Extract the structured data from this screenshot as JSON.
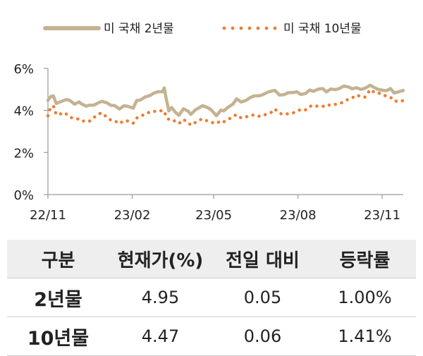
{
  "chart_data": {
    "type": "line",
    "series": [
      {
        "name": "미 국채 2년물",
        "color": "#c4b291",
        "style": "solid",
        "points": [
          [
            "2022-11-01",
            4.48
          ],
          [
            "2022-11-04",
            4.66
          ],
          [
            "2022-11-07",
            4.69
          ],
          [
            "2022-11-10",
            4.33
          ],
          [
            "2022-11-14",
            4.4
          ],
          [
            "2022-11-17",
            4.45
          ],
          [
            "2022-11-21",
            4.52
          ],
          [
            "2022-11-25",
            4.47
          ],
          [
            "2022-11-30",
            4.3
          ],
          [
            "2022-12-05",
            4.4
          ],
          [
            "2022-12-08",
            4.3
          ],
          [
            "2022-12-13",
            4.2
          ],
          [
            "2022-12-16",
            4.25
          ],
          [
            "2022-12-21",
            4.25
          ],
          [
            "2022-12-27",
            4.38
          ],
          [
            "2022-12-30",
            4.43
          ],
          [
            "2023-01-04",
            4.37
          ],
          [
            "2023-01-09",
            4.24
          ],
          [
            "2023-01-13",
            4.23
          ],
          [
            "2023-01-18",
            4.07
          ],
          [
            "2023-01-23",
            4.22
          ],
          [
            "2023-01-27",
            4.2
          ],
          [
            "2023-02-02",
            4.11
          ],
          [
            "2023-02-06",
            4.47
          ],
          [
            "2023-02-10",
            4.5
          ],
          [
            "2023-02-15",
            4.64
          ],
          [
            "2023-02-21",
            4.72
          ],
          [
            "2023-02-24",
            4.81
          ],
          [
            "2023-03-01",
            4.89
          ],
          [
            "2023-03-06",
            4.89
          ],
          [
            "2023-03-08",
            5.07
          ],
          [
            "2023-03-10",
            4.59
          ],
          [
            "2023-03-13",
            3.98
          ],
          [
            "2023-03-16",
            4.14
          ],
          [
            "2023-03-20",
            3.92
          ],
          [
            "2023-03-24",
            3.77
          ],
          [
            "2023-03-29",
            4.08
          ],
          [
            "2023-04-03",
            3.97
          ],
          [
            "2023-04-06",
            3.81
          ],
          [
            "2023-04-11",
            4.03
          ],
          [
            "2023-04-14",
            4.1
          ],
          [
            "2023-04-19",
            4.23
          ],
          [
            "2023-04-24",
            4.14
          ],
          [
            "2023-04-28",
            4.04
          ],
          [
            "2023-05-04",
            3.75
          ],
          [
            "2023-05-09",
            4.02
          ],
          [
            "2023-05-12",
            3.98
          ],
          [
            "2023-05-17",
            4.16
          ],
          [
            "2023-05-22",
            4.3
          ],
          [
            "2023-05-26",
            4.55
          ],
          [
            "2023-05-31",
            4.4
          ],
          [
            "2023-06-05",
            4.47
          ],
          [
            "2023-06-09",
            4.59
          ],
          [
            "2023-06-14",
            4.69
          ],
          [
            "2023-06-20",
            4.7
          ],
          [
            "2023-06-23",
            4.74
          ],
          [
            "2023-06-29",
            4.87
          ],
          [
            "2023-07-05",
            4.94
          ],
          [
            "2023-07-07",
            4.95
          ],
          [
            "2023-07-12",
            4.73
          ],
          [
            "2023-07-17",
            4.75
          ],
          [
            "2023-07-21",
            4.84
          ],
          [
            "2023-07-26",
            4.85
          ],
          [
            "2023-07-31",
            4.88
          ],
          [
            "2023-08-04",
            4.76
          ],
          [
            "2023-08-09",
            4.8
          ],
          [
            "2023-08-14",
            4.97
          ],
          [
            "2023-08-18",
            4.91
          ],
          [
            "2023-08-23",
            5.01
          ],
          [
            "2023-08-28",
            5.04
          ],
          [
            "2023-09-01",
            4.88
          ],
          [
            "2023-09-06",
            5.02
          ],
          [
            "2023-09-11",
            4.99
          ],
          [
            "2023-09-15",
            5.04
          ],
          [
            "2023-09-20",
            5.16
          ],
          [
            "2023-09-25",
            5.12
          ],
          [
            "2023-09-29",
            5.03
          ],
          [
            "2023-10-04",
            5.08
          ],
          [
            "2023-10-09",
            5.0
          ],
          [
            "2023-10-13",
            5.05
          ],
          [
            "2023-10-19",
            5.2
          ],
          [
            "2023-10-24",
            5.07
          ],
          [
            "2023-10-27",
            5.01
          ],
          [
            "2023-11-01",
            4.96
          ],
          [
            "2023-11-06",
            4.94
          ],
          [
            "2023-11-10",
            5.04
          ],
          [
            "2023-11-14",
            4.83
          ],
          [
            "2023-11-20",
            4.9
          ],
          [
            "2023-11-24",
            4.95
          ]
        ]
      },
      {
        "name": "미 국채 10년물",
        "color": "#ee7d31",
        "style": "dotted",
        "points": [
          [
            "2022-11-01",
            3.74
          ],
          [
            "2022-11-04",
            4.16
          ],
          [
            "2022-11-07",
            4.21
          ],
          [
            "2022-11-10",
            3.81
          ],
          [
            "2022-11-14",
            3.86
          ],
          [
            "2022-11-17",
            3.77
          ],
          [
            "2022-11-21",
            3.83
          ],
          [
            "2022-11-25",
            3.68
          ],
          [
            "2022-11-30",
            3.61
          ],
          [
            "2022-12-05",
            3.59
          ],
          [
            "2022-12-08",
            3.49
          ],
          [
            "2022-12-13",
            3.51
          ],
          [
            "2022-12-16",
            3.48
          ],
          [
            "2022-12-21",
            3.66
          ],
          [
            "2022-12-27",
            3.84
          ],
          [
            "2022-12-30",
            3.88
          ],
          [
            "2023-01-04",
            3.69
          ],
          [
            "2023-01-09",
            3.53
          ],
          [
            "2023-01-13",
            3.51
          ],
          [
            "2023-01-18",
            3.37
          ],
          [
            "2023-01-23",
            3.52
          ],
          [
            "2023-01-27",
            3.5
          ],
          [
            "2023-02-02",
            3.39
          ],
          [
            "2023-02-06",
            3.64
          ],
          [
            "2023-02-10",
            3.74
          ],
          [
            "2023-02-15",
            3.81
          ],
          [
            "2023-02-21",
            3.95
          ],
          [
            "2023-02-24",
            3.94
          ],
          [
            "2023-03-01",
            4.0
          ],
          [
            "2023-03-06",
            3.98
          ],
          [
            "2023-03-08",
            3.98
          ],
          [
            "2023-03-10",
            3.7
          ],
          [
            "2023-03-13",
            3.57
          ],
          [
            "2023-03-16",
            3.58
          ],
          [
            "2023-03-20",
            3.48
          ],
          [
            "2023-03-24",
            3.38
          ],
          [
            "2023-03-29",
            3.57
          ],
          [
            "2023-04-03",
            3.43
          ],
          [
            "2023-04-06",
            3.3
          ],
          [
            "2023-04-11",
            3.43
          ],
          [
            "2023-04-14",
            3.52
          ],
          [
            "2023-04-19",
            3.6
          ],
          [
            "2023-04-24",
            3.5
          ],
          [
            "2023-04-28",
            3.44
          ],
          [
            "2023-05-04",
            3.38
          ],
          [
            "2023-05-09",
            3.52
          ],
          [
            "2023-05-12",
            3.46
          ],
          [
            "2023-05-17",
            3.57
          ],
          [
            "2023-05-22",
            3.72
          ],
          [
            "2023-05-26",
            3.8
          ],
          [
            "2023-05-31",
            3.64
          ],
          [
            "2023-06-05",
            3.69
          ],
          [
            "2023-06-09",
            3.74
          ],
          [
            "2023-06-14",
            3.79
          ],
          [
            "2023-06-20",
            3.72
          ],
          [
            "2023-06-23",
            3.74
          ],
          [
            "2023-06-29",
            3.85
          ],
          [
            "2023-07-05",
            3.94
          ],
          [
            "2023-07-07",
            4.06
          ],
          [
            "2023-07-12",
            3.86
          ],
          [
            "2023-07-17",
            3.81
          ],
          [
            "2023-07-21",
            3.84
          ],
          [
            "2023-07-26",
            3.87
          ],
          [
            "2023-07-31",
            3.96
          ],
          [
            "2023-08-04",
            4.05
          ],
          [
            "2023-08-09",
            4.02
          ],
          [
            "2023-08-14",
            4.19
          ],
          [
            "2023-08-18",
            4.25
          ],
          [
            "2023-08-23",
            4.19
          ],
          [
            "2023-08-28",
            4.2
          ],
          [
            "2023-09-01",
            4.18
          ],
          [
            "2023-09-06",
            4.3
          ],
          [
            "2023-09-11",
            4.29
          ],
          [
            "2023-09-15",
            4.33
          ],
          [
            "2023-09-20",
            4.4
          ],
          [
            "2023-09-25",
            4.54
          ],
          [
            "2023-09-29",
            4.59
          ],
          [
            "2023-10-04",
            4.73
          ],
          [
            "2023-10-09",
            4.66
          ],
          [
            "2023-10-13",
            4.63
          ],
          [
            "2023-10-19",
            4.99
          ],
          [
            "2023-10-24",
            4.84
          ],
          [
            "2023-10-27",
            4.84
          ],
          [
            "2023-11-01",
            4.78
          ],
          [
            "2023-11-06",
            4.66
          ],
          [
            "2023-11-10",
            4.63
          ],
          [
            "2023-11-14",
            4.45
          ],
          [
            "2023-11-20",
            4.42
          ],
          [
            "2023-11-24",
            4.47
          ]
        ]
      }
    ],
    "x_ticks": [
      {
        "date": "2022-11-01",
        "label": "22/11"
      },
      {
        "date": "2023-02-01",
        "label": "23/02"
      },
      {
        "date": "2023-05-01",
        "label": "23/05"
      },
      {
        "date": "2023-08-01",
        "label": "23/08"
      },
      {
        "date": "2023-11-01",
        "label": "23/11"
      }
    ],
    "xlim": [
      "2022-11-01",
      "2023-11-24"
    ],
    "ylim": [
      0,
      6
    ],
    "y_ticks": [
      {
        "value": 0,
        "label": "0%"
      },
      {
        "value": 2,
        "label": "2%"
      },
      {
        "value": 4,
        "label": "4%"
      },
      {
        "value": 6,
        "label": "6%"
      }
    ],
    "legend_position": "top",
    "grid": false
  },
  "table": {
    "headers": [
      "구분",
      "현재가(%)",
      "전일 대비",
      "등락률"
    ],
    "rows": [
      {
        "label": "2년물",
        "price": "4.95",
        "change": "0.05",
        "rate": "1.00%"
      },
      {
        "label": "10년물",
        "price": "4.47",
        "change": "0.06",
        "rate": "1.41%"
      }
    ]
  }
}
